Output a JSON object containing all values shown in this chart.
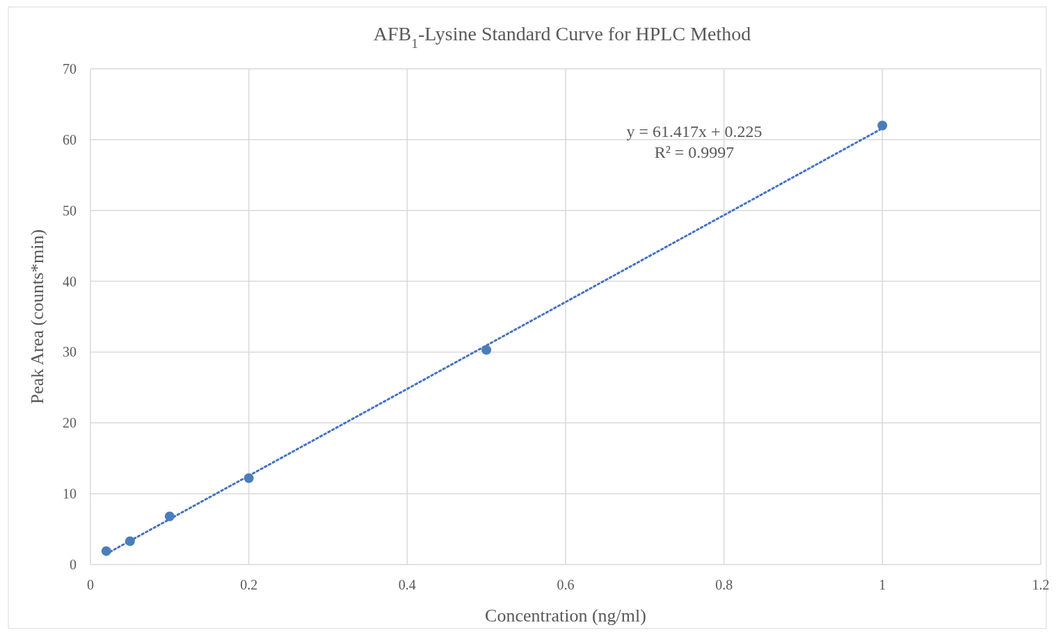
{
  "chart_data": {
    "type": "scatter",
    "title": "AFB$_{1}$-Lysine Standard Curve for HPLC Method",
    "xlabel": "Concentration (ng/ml)",
    "ylabel": "Peak Area (counts*min)",
    "x": [
      0.02,
      0.05,
      0.1,
      0.2,
      0.5,
      1
    ],
    "series": [
      {
        "color": "#4a7ebb",
        "marker": "circle",
        "values": [
          1.9,
          3.3,
          6.8,
          12.2,
          30.3,
          62
        ]
      },
      {
        "type": "line",
        "color": "#4472c4",
        "line_style": "dotted",
        "marker": "none",
        "x": [
          0.02,
          1
        ],
        "values": [
          1.5,
          61.6
        ]
      }
    ],
    "xlim": [
      0,
      1.2
    ],
    "xticks": [
      0,
      0.2,
      0.4,
      0.6,
      0.8,
      1,
      1.2
    ],
    "ylim": [
      0,
      70
    ],
    "yticks": [
      0,
      10,
      20,
      30,
      40,
      50,
      60,
      70
    ],
    "grid": true,
    "annotations": [
      "y = 61.417x + 0.225",
      "R² = 0.9997"
    ]
  }
}
